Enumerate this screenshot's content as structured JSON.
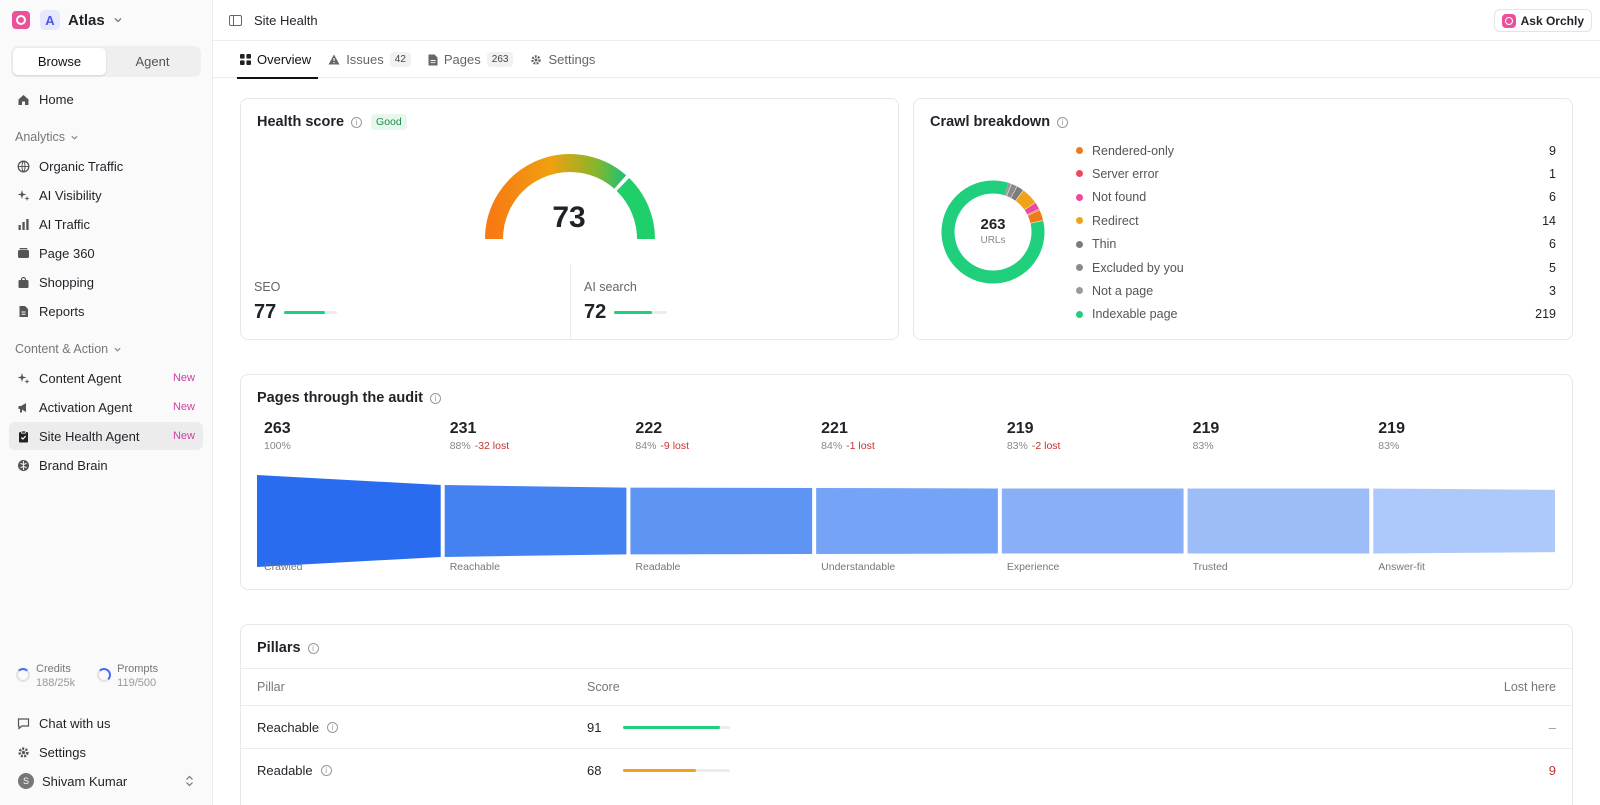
{
  "workspace": {
    "name": "Atlas",
    "avatar": "A"
  },
  "mode": {
    "browse": "Browse",
    "agent": "Agent"
  },
  "nav": {
    "home": "Home"
  },
  "analytics": {
    "label": "Analytics",
    "items": [
      {
        "label": "Organic Traffic"
      },
      {
        "label": "AI Visibility"
      },
      {
        "label": "AI Traffic"
      },
      {
        "label": "Page 360"
      },
      {
        "label": "Shopping"
      },
      {
        "label": "Reports"
      }
    ]
  },
  "content": {
    "label": "Content & Action",
    "items": [
      {
        "label": "Content Agent",
        "badge": "New"
      },
      {
        "label": "Activation Agent",
        "badge": "New"
      },
      {
        "label": "Site Health Agent",
        "badge": "New"
      },
      {
        "label": "Brand Brain"
      }
    ]
  },
  "usage": {
    "credits": {
      "label": "Credits",
      "value": "188/25k"
    },
    "prompts": {
      "label": "Prompts",
      "value": "119/500"
    }
  },
  "footer": {
    "chat": "Chat with us",
    "settings": "Settings",
    "user": "Shivam Kumar",
    "user_initial": "S"
  },
  "header": {
    "title": "Site Health",
    "ask": "Ask Orchly"
  },
  "tabs": [
    {
      "label": "Overview"
    },
    {
      "label": "Issues",
      "count": "42"
    },
    {
      "label": "Pages",
      "count": "263"
    },
    {
      "label": "Settings"
    }
  ],
  "health": {
    "title": "Health score",
    "badge": "Good",
    "score": "73",
    "score_value": 73,
    "seo_label": "SEO",
    "seo": "77",
    "seo_value": 77,
    "ai_label": "AI search",
    "ai": "72",
    "ai_value": 72
  },
  "crawl": {
    "title": "Crawl breakdown",
    "total": "263",
    "total_label": "URLs",
    "items": [
      {
        "label": "Rendered-only",
        "value": "9",
        "num": 9,
        "color": "#f07a1a"
      },
      {
        "label": "Server error",
        "value": "1",
        "num": 1,
        "color": "#ec4a5b"
      },
      {
        "label": "Not found",
        "value": "6",
        "num": 6,
        "color": "#ec4a9a"
      },
      {
        "label": "Redirect",
        "value": "14",
        "num": 14,
        "color": "#f0a21a"
      },
      {
        "label": "Thin",
        "value": "6",
        "num": 6,
        "color": "#7c7c7c"
      },
      {
        "label": "Excluded by you",
        "value": "5",
        "num": 5,
        "color": "#8a8a8a"
      },
      {
        "label": "Not a page",
        "value": "3",
        "num": 3,
        "color": "#9a9a9a"
      },
      {
        "label": "Indexable page",
        "value": "219",
        "num": 219,
        "color": "#1fcf7b"
      }
    ]
  },
  "audit": {
    "title": "Pages through the audit",
    "steps": [
      {
        "count": "263",
        "num": 263,
        "pct": "100%",
        "lost": "",
        "label": "Crawled",
        "color": "#2a6cf0"
      },
      {
        "count": "231",
        "num": 231,
        "pct": "88%",
        "lost": "-32 lost",
        "label": "Reachable",
        "color": "#4482f2"
      },
      {
        "count": "222",
        "num": 222,
        "pct": "84%",
        "lost": "-9 lost",
        "label": "Readable",
        "color": "#5e94f4"
      },
      {
        "count": "221",
        "num": 221,
        "pct": "84%",
        "lost": "-1 lost",
        "label": "Understandable",
        "color": "#75a3f6"
      },
      {
        "count": "219",
        "num": 219,
        "pct": "83%",
        "lost": "-2 lost",
        "label": "Experience",
        "color": "#89b0f7"
      },
      {
        "count": "219",
        "num": 219,
        "pct": "83%",
        "lost": "",
        "label": "Trusted",
        "color": "#9cbdf8"
      },
      {
        "count": "219",
        "num": 219,
        "pct": "83%",
        "lost": "",
        "label": "Answer-fit",
        "color": "#adc8fa"
      }
    ]
  },
  "pillars": {
    "title": "Pillars",
    "cols": {
      "pillar": "Pillar",
      "score": "Score",
      "lost": "Lost here"
    },
    "rows": [
      {
        "name": "Reachable",
        "score": "91",
        "score_value": 91,
        "lost": "–",
        "color": "#1fcf7b"
      },
      {
        "name": "Readable",
        "score": "68",
        "score_value": 68,
        "lost": "9",
        "color": "#f0a21a"
      }
    ]
  }
}
